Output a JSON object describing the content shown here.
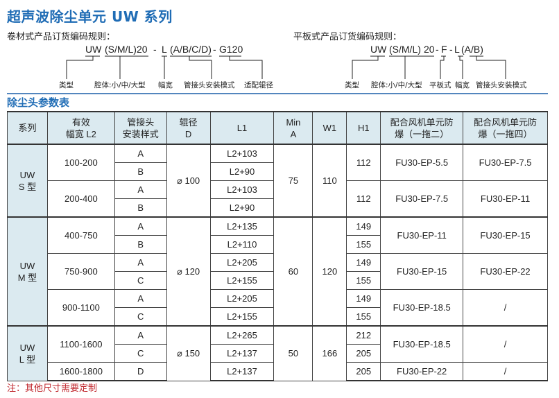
{
  "title": "超声波除尘单元 UW 系列",
  "roll_rule": {
    "heading": "卷材式产品订货编码规则：",
    "code_parts": [
      "UW",
      "(S/M/L)",
      "20",
      "-",
      "L",
      "(A/B/C/D)",
      "-",
      "G120"
    ],
    "labels": [
      "类型",
      "腔体:小/中/大型",
      "幅宽",
      "管接头安装模式",
      "适配辊径"
    ]
  },
  "flat_rule": {
    "heading": "平板式产品订货编码规则：",
    "code_parts": [
      "UW",
      "(S/M/L)",
      "20",
      "-",
      "F",
      "-",
      "L",
      "(A/B)"
    ],
    "labels": [
      "类型",
      "腔体:小/中/大型",
      "平板式",
      "幅宽",
      "管接头安装模式"
    ]
  },
  "section_title": "除尘头参数表",
  "accent_color": "#1f6cb5",
  "header_bg": "#dbeaf0",
  "table": {
    "headers": [
      "系列",
      "有效\n幅宽 L2",
      "管接头\n安装样式",
      "辊径\nD",
      "L1",
      "Min\nA",
      "W1",
      "H1",
      "配合风机单元防\n爆（一拖二）",
      "配合风机单元防\n爆（一拖四）"
    ],
    "groups": [
      {
        "series": "UW\nS 型",
        "D": "⌀ 100",
        "A": "75",
        "W1": "110",
        "widths": [
          {
            "L2": "100-200",
            "fan2": "FU30-EP-5.5",
            "fan4": "FU30-EP-7.5",
            "H1_merged": true,
            "rows": [
              {
                "style": "A",
                "L1": "L2+103",
                "H1": "112"
              },
              {
                "style": "B",
                "L1": "L2+90",
                "H1": "112"
              }
            ]
          },
          {
            "L2": "200-400",
            "fan2": "FU30-EP-7.5",
            "fan4": "FU30-EP-11",
            "H1_merged": true,
            "rows": [
              {
                "style": "A",
                "L1": "L2+103",
                "H1": "112"
              },
              {
                "style": "B",
                "L1": "L2+90",
                "H1": "112"
              }
            ]
          }
        ]
      },
      {
        "series": "UW\nM 型",
        "D": "⌀ 120",
        "A": "60",
        "W1": "120",
        "widths": [
          {
            "L2": "400-750",
            "fan2": "FU30-EP-11",
            "fan4": "FU30-EP-15",
            "rows": [
              {
                "style": "A",
                "L1": "L2+135",
                "H1": "149"
              },
              {
                "style": "B",
                "L1": "L2+110",
                "H1": "155"
              }
            ]
          },
          {
            "L2": "750-900",
            "fan2": "FU30-EP-15",
            "fan4": "FU30-EP-22",
            "rows": [
              {
                "style": "A",
                "L1": "L2+205",
                "H1": "149"
              },
              {
                "style": "C",
                "L1": "L2+155",
                "H1": "155"
              }
            ]
          },
          {
            "L2": "900-1100",
            "fan2": "FU30-EP-18.5",
            "fan4": "/",
            "rows": [
              {
                "style": "A",
                "L1": "L2+205",
                "H1": "149"
              },
              {
                "style": "C",
                "L1": "L2+155",
                "H1": "155"
              }
            ]
          }
        ]
      },
      {
        "series": "UW\nL 型",
        "D": "⌀ 150",
        "A": "50",
        "W1": "166",
        "widths": [
          {
            "L2": "1100-1600",
            "fan2": "FU30-EP-18.5",
            "fan4": "/",
            "rows": [
              {
                "style": "A",
                "L1": "L2+265",
                "H1": "212"
              },
              {
                "style": "C",
                "L1": "L2+137",
                "H1": "205"
              }
            ]
          },
          {
            "L2": "1600-1800",
            "fan2": "FU30-EP-22",
            "fan4": "/",
            "rows": [
              {
                "style": "D",
                "L1": "L2+137",
                "H1": "205"
              }
            ]
          }
        ]
      }
    ]
  },
  "note": "注：其他尺寸需要定制",
  "note_color": "#c0272d"
}
